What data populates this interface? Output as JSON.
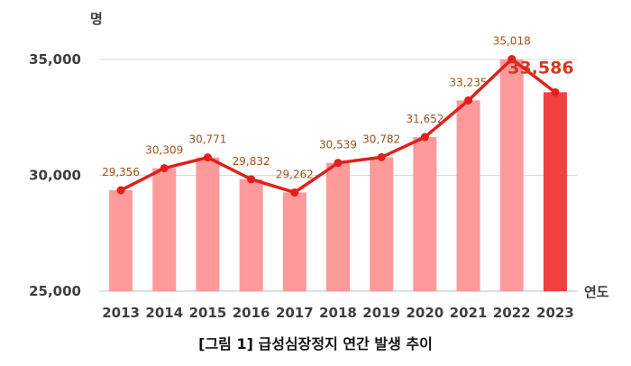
{
  "caption": "[그림 1] 급성심장정지 연간 발생 추이",
  "chart_data": {
    "type": "bar",
    "categories": [
      "2013",
      "2014",
      "2015",
      "2016",
      "2017",
      "2018",
      "2019",
      "2020",
      "2021",
      "2022",
      "2023"
    ],
    "values": [
      29356,
      30309,
      30771,
      29832,
      29262,
      30539,
      30782,
      31652,
      33235,
      35018,
      33586
    ],
    "labels": [
      "29,356",
      "30,309",
      "30,771",
      "29,832",
      "29,262",
      "30,539",
      "30,782",
      "31,652",
      "33,235",
      "35,018",
      "33,586"
    ],
    "overlay_line": true,
    "ylim": [
      25000,
      35000
    ],
    "yticks": [
      25000,
      30000,
      35000
    ],
    "ytick_labels": [
      "25,000",
      "30,000",
      "35,000"
    ],
    "ylabel": "명",
    "xlabel": "연도",
    "grid": true,
    "highlight_index": 10,
    "colors": {
      "bar": "#ff9a9a",
      "highlight_bar": "#f0413e",
      "line": "#e0201c",
      "label": "#a0521a",
      "highlight_label": "#d33a22"
    }
  }
}
